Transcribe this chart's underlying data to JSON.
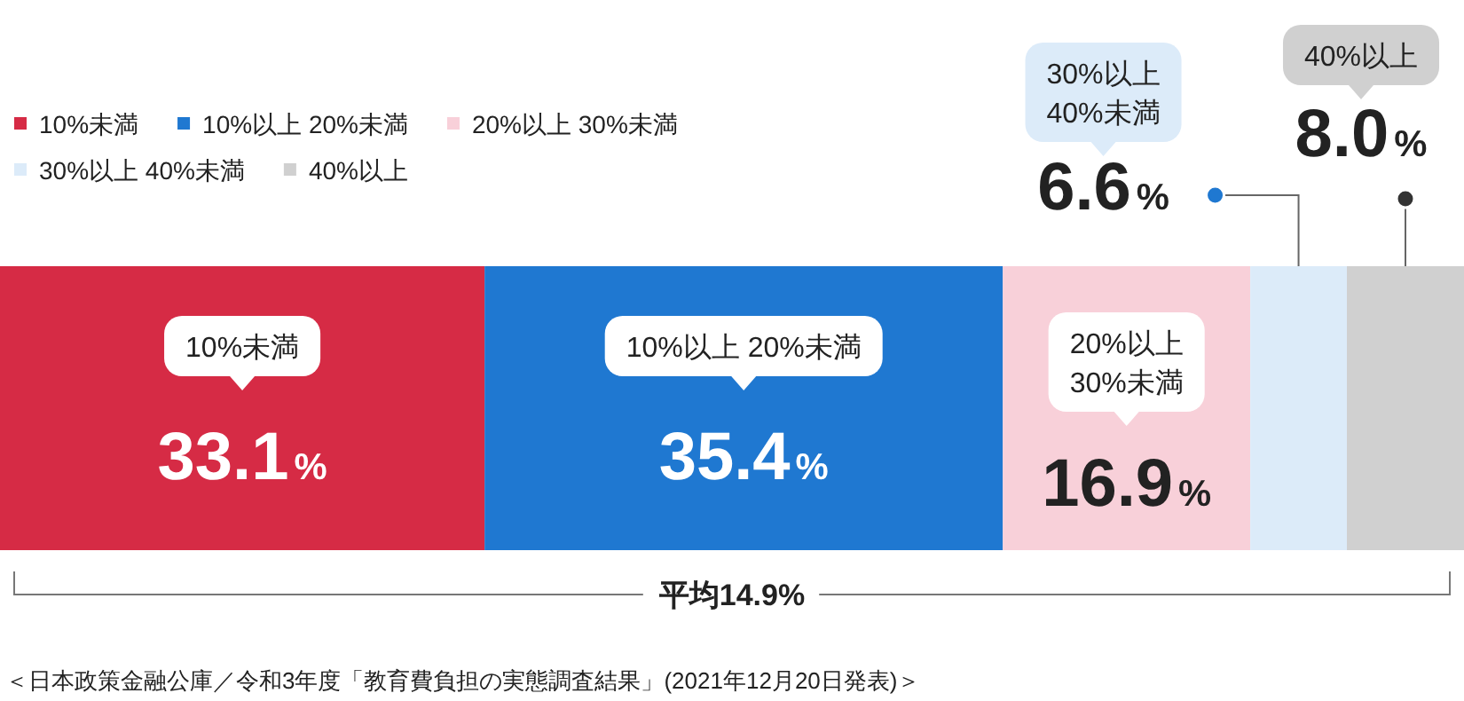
{
  "chart_data": {
    "type": "bar",
    "orientation": "horizontal",
    "stacked": true,
    "categories": [
      null
    ],
    "xlim": [
      0,
      100
    ],
    "legend": "top left",
    "series": [
      {
        "name": "10%未満",
        "color": "#d62b45",
        "values": [
          33.1
        ],
        "value_labels": [
          "33.1%"
        ]
      },
      {
        "name": "10%以上 20%未満",
        "color": "#1f78d1",
        "values": [
          35.4
        ],
        "value_labels": [
          "35.4%"
        ]
      },
      {
        "name": "20%以上 30%未満",
        "color": "#f8d0d9",
        "values": [
          16.9
        ],
        "value_labels": [
          "16.9%"
        ]
      },
      {
        "name": "30%以上 40%未満",
        "color": "#dcebf9",
        "values": [
          6.6
        ],
        "value_labels": [
          "6.6%"
        ]
      },
      {
        "name": "40%以上",
        "color": "#d0d0d0",
        "values": [
          8.0
        ],
        "value_labels": [
          "8.0%"
        ]
      }
    ],
    "annotations": [
      "平均14.9%",
      "＜日本政策金融公庫／令和3年度「教育費負担の実態調査結果」(2021年12月20日発表)＞"
    ]
  }
}
